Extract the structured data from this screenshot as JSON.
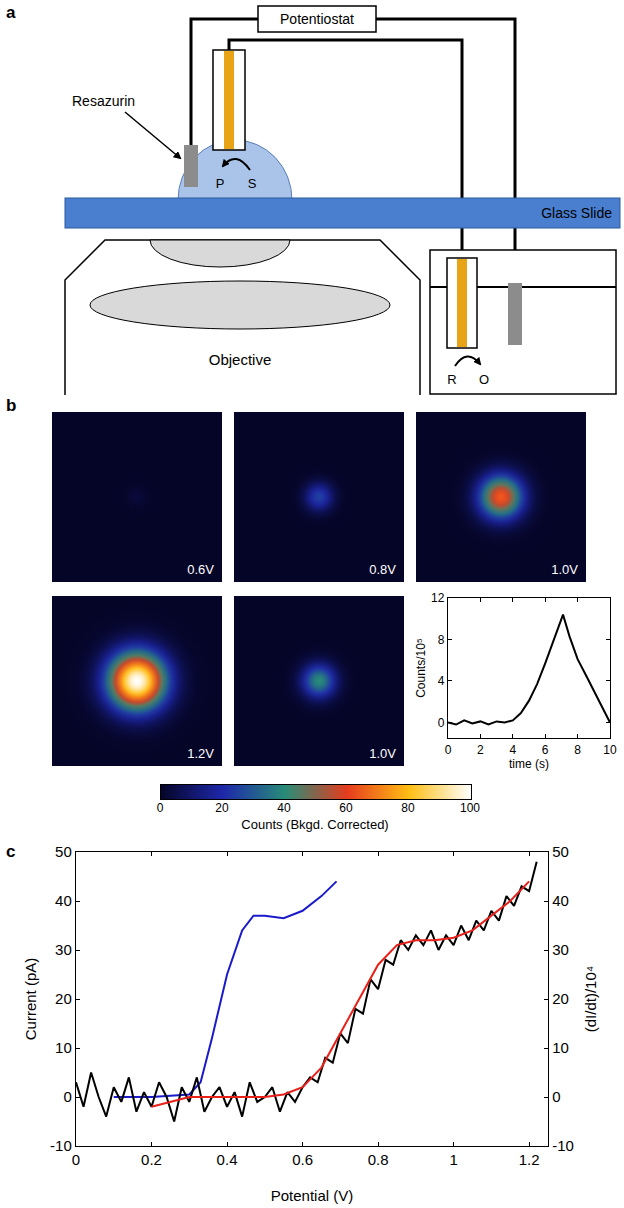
{
  "figure": {
    "panel_a": {
      "label": "a",
      "potentiostat": "Potentiostat",
      "resazurin": "Resazurin",
      "p": "P",
      "s": "S",
      "glass_slide": "Glass Slide",
      "objective": "Objective",
      "r": "R",
      "o": "O"
    },
    "panel_b": {
      "label": "b",
      "images": [
        {
          "label": "0.6V",
          "peak": 3
        },
        {
          "label": "0.8V",
          "peak": 25
        },
        {
          "label": "1.0V",
          "peak": 65
        },
        {
          "label": "1.2V",
          "peak": 100
        },
        {
          "label": "1.0V",
          "peak": 40
        }
      ],
      "colorbar": {
        "range": [
          0,
          100
        ],
        "ticks": [
          0,
          20,
          40,
          60,
          80,
          100
        ],
        "label": "Counts (Bkgd. Corrected)"
      }
    },
    "panel_c": {
      "label": "c"
    }
  },
  "chart_data": [
    {
      "type": "line",
      "x_label": "time (s)",
      "y_label": "Counts/10⁵",
      "color": "#000000",
      "x": [
        0,
        0.5,
        1,
        1.5,
        2,
        2.5,
        3,
        3.5,
        4,
        4.5,
        5,
        5.5,
        6,
        6.5,
        7,
        7.1,
        7.5,
        8,
        8.5,
        9,
        9.5,
        10
      ],
      "values": [
        0,
        -0.2,
        0.2,
        -0.1,
        0.1,
        -0.2,
        0.1,
        0,
        0.2,
        0.9,
        2.1,
        3.7,
        5.7,
        7.9,
        10.1,
        10.4,
        8.3,
        6.1,
        4.6,
        3.1,
        1.6,
        0
      ],
      "xlim": [
        0,
        10
      ],
      "xticks": [
        0,
        2,
        4,
        6,
        8,
        10
      ],
      "ylim": [
        -1.5,
        12
      ],
      "yticks": [
        0,
        4,
        8,
        12
      ],
      "grid": false
    },
    {
      "type": "line",
      "x_label": "Potential (V)",
      "y_label": "Current (pA)",
      "y2_label": "(dI/dt)/10⁴",
      "xlim": [
        0,
        1.25
      ],
      "xticks": [
        0,
        0.2,
        0.4,
        0.6,
        0.8,
        1.0,
        1.2
      ],
      "ylim": [
        -10,
        50
      ],
      "yticks": [
        -10,
        0,
        10,
        20,
        30,
        40,
        50
      ],
      "y2lim": [
        -10,
        50
      ],
      "y2ticks": [
        -10,
        0,
        10,
        20,
        30,
        40,
        50
      ],
      "grid": false,
      "series": [
        {
          "color": "#000000",
          "axis": "y2",
          "x": [
            0,
            0.02,
            0.04,
            0.06,
            0.08,
            0.1,
            0.12,
            0.14,
            0.16,
            0.18,
            0.2,
            0.22,
            0.24,
            0.26,
            0.28,
            0.3,
            0.32,
            0.34,
            0.36,
            0.38,
            0.4,
            0.42,
            0.44,
            0.46,
            0.48,
            0.5,
            0.52,
            0.54,
            0.56,
            0.58,
            0.6,
            0.62,
            0.64,
            0.66,
            0.68,
            0.7,
            0.72,
            0.74,
            0.76,
            0.78,
            0.8,
            0.82,
            0.84,
            0.86,
            0.88,
            0.9,
            0.92,
            0.94,
            0.96,
            0.98,
            1.0,
            1.02,
            1.04,
            1.06,
            1.08,
            1.1,
            1.12,
            1.14,
            1.16,
            1.18,
            1.2,
            1.22
          ],
          "values": [
            3,
            -2,
            5,
            0,
            -4,
            2,
            -1,
            4,
            -3,
            1,
            -2,
            3,
            0,
            -5,
            2,
            -1,
            4,
            -3,
            0,
            2,
            -2,
            1,
            -4,
            3,
            -1,
            0,
            2,
            -3,
            1,
            -1,
            2,
            4,
            3,
            8,
            7,
            13,
            11,
            18,
            17,
            24,
            22,
            28,
            27,
            32,
            30,
            33,
            31,
            34,
            30,
            33,
            31,
            35,
            32,
            36,
            34,
            38,
            36,
            41,
            39,
            43,
            42,
            48
          ]
        },
        {
          "color": "#e8201a",
          "axis": "y2",
          "x": [
            0.2,
            0.3,
            0.4,
            0.5,
            0.55,
            0.6,
            0.65,
            0.7,
            0.75,
            0.8,
            0.85,
            0.9,
            0.95,
            1.0,
            1.05,
            1.1,
            1.15,
            1.2
          ],
          "values": [
            -2,
            0,
            0,
            0,
            0.5,
            2,
            6,
            13,
            20,
            27,
            31,
            32,
            32,
            32.5,
            34,
            37,
            40,
            44
          ]
        },
        {
          "color": "#1a1acc",
          "axis": "y",
          "x": [
            0.1,
            0.2,
            0.3,
            0.33,
            0.36,
            0.4,
            0.44,
            0.47,
            0.5,
            0.55,
            0.6,
            0.65,
            0.69
          ],
          "values": [
            0,
            0,
            0.5,
            3,
            12,
            25,
            34,
            37,
            37,
            36.5,
            38,
            41,
            44
          ]
        }
      ]
    }
  ]
}
